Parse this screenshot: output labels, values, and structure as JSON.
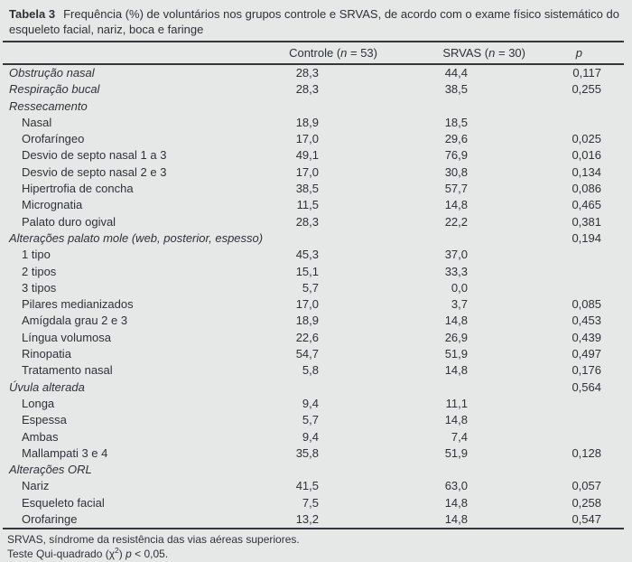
{
  "title": {
    "label": "Tabela 3",
    "text": "Frequência (%) de voluntários nos grupos controle e SRVAS, de acordo com o exame físico sistemático do esqueleto facial, nariz, boca e faringe"
  },
  "table": {
    "headers": {
      "controle": {
        "pre": "Controle (",
        "it": "n",
        "post": " = 53)"
      },
      "srvas": {
        "pre": "SRVAS (",
        "it": "n",
        "post": " = 30)"
      },
      "p": {
        "pre": "",
        "it": "p",
        "post": ""
      }
    },
    "rows": [
      {
        "label": "Obstrução nasal",
        "italic": true,
        "indent": false,
        "controle": "28,3",
        "srvas": "44,4",
        "p": "0,117"
      },
      {
        "label": "Respiração bucal",
        "italic": true,
        "indent": false,
        "controle": "28,3",
        "srvas": "38,5",
        "p": "0,255"
      },
      {
        "label": "Ressecamento",
        "italic": true,
        "indent": false,
        "controle": "",
        "srvas": "",
        "p": ""
      },
      {
        "label": "Nasal",
        "italic": false,
        "indent": true,
        "controle": "18,9",
        "srvas": "18,5",
        "p": ""
      },
      {
        "label": "Orofaríngeo",
        "italic": false,
        "indent": true,
        "controle": "17,0",
        "srvas": "29,6",
        "p": "0,025"
      },
      {
        "label": "Desvio de septo nasal 1 a 3",
        "italic": false,
        "indent": true,
        "controle": "49,1",
        "srvas": "76,9",
        "p": "0,016"
      },
      {
        "label": "Desvio de septo nasal 2 e 3",
        "italic": false,
        "indent": true,
        "controle": "17,0",
        "srvas": "30,8",
        "p": "0,134"
      },
      {
        "label": "Hipertrofia de concha",
        "italic": false,
        "indent": true,
        "controle": "38,5",
        "srvas": "57,7",
        "p": "0,086"
      },
      {
        "label": "Micrognatia",
        "italic": false,
        "indent": true,
        "controle": "11,5",
        "srvas": "14,8",
        "p": "0,465"
      },
      {
        "label": "Palato duro ogival",
        "italic": false,
        "indent": true,
        "controle": "28,3",
        "srvas": "22,2",
        "p": "0,381"
      },
      {
        "label": "Alterações palato mole (web, posterior, espesso)",
        "italic": true,
        "indent": false,
        "controle": "",
        "srvas": "",
        "p": "0,194"
      },
      {
        "label": "1 tipo",
        "italic": false,
        "indent": true,
        "controle": "45,3",
        "srvas": "37,0",
        "p": ""
      },
      {
        "label": "2 tipos",
        "italic": false,
        "indent": true,
        "controle": "15,1",
        "srvas": "33,3",
        "p": ""
      },
      {
        "label": "3 tipos",
        "italic": false,
        "indent": true,
        "controle": "5,7",
        "srvas": "0,0",
        "p": ""
      },
      {
        "label": "Pilares medianizados",
        "italic": false,
        "indent": true,
        "controle": "17,0",
        "srvas": "3,7",
        "p": "0,085"
      },
      {
        "label": "Amígdala grau 2 e 3",
        "italic": false,
        "indent": true,
        "controle": "18,9",
        "srvas": "14,8",
        "p": "0,453"
      },
      {
        "label": "Língua volumosa",
        "italic": false,
        "indent": true,
        "controle": "22,6",
        "srvas": "26,9",
        "p": "0,439"
      },
      {
        "label": "Rinopatia",
        "italic": false,
        "indent": true,
        "controle": "54,7",
        "srvas": "51,9",
        "p": "0,497"
      },
      {
        "label": "Tratamento nasal",
        "italic": false,
        "indent": true,
        "controle": "5,8",
        "srvas": "14,8",
        "p": "0,176"
      },
      {
        "label": "Úvula alterada",
        "italic": true,
        "indent": false,
        "controle": "",
        "srvas": "",
        "p": "0,564"
      },
      {
        "label": "Longa",
        "italic": false,
        "indent": true,
        "controle": "9,4",
        "srvas": "11,1",
        "p": ""
      },
      {
        "label": "Espessa",
        "italic": false,
        "indent": true,
        "controle": "5,7",
        "srvas": "14,8",
        "p": ""
      },
      {
        "label": "Ambas",
        "italic": false,
        "indent": true,
        "controle": "9,4",
        "srvas": "7,4",
        "p": ""
      },
      {
        "label": "Mallampati 3 e 4",
        "italic": false,
        "indent": true,
        "controle": "35,8",
        "srvas": "51,9",
        "p": "0,128"
      },
      {
        "label": "Alterações ORL",
        "italic": true,
        "indent": false,
        "controle": "",
        "srvas": "",
        "p": ""
      },
      {
        "label": "Nariz",
        "italic": false,
        "indent": true,
        "controle": "41,5",
        "srvas": "63,0",
        "p": "0,057"
      },
      {
        "label": "Esqueleto facial",
        "italic": false,
        "indent": true,
        "controle": "7,5",
        "srvas": "14,8",
        "p": "0,258"
      },
      {
        "label": "Orofaringe",
        "italic": false,
        "indent": true,
        "controle": "13,2",
        "srvas": "14,8",
        "p": "0,547"
      }
    ]
  },
  "footnotes": {
    "line1": "SRVAS, síndrome da resistência das vias aéreas superiores.",
    "line2": {
      "pre": "Teste Qui-quadrado (χ",
      "sup": "2",
      "mid": ") ",
      "it": "p",
      "post": " < 0,05."
    }
  },
  "colors": {
    "background": "#e6e8e8",
    "text": "#2e3234",
    "rule": "#34383a"
  }
}
